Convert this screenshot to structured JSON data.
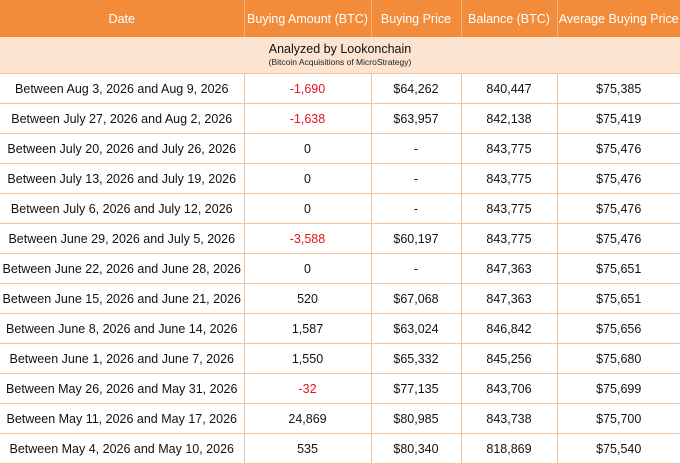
{
  "colors": {
    "header_bg": "#f28c3a",
    "banner_bg": "#fce4d0",
    "grid": "#f3c29a",
    "negative": "#e8141c"
  },
  "header": {
    "date": "Date",
    "amount": "Buying Amount (BTC)",
    "price": "Buying Price",
    "balance": "Balance (BTC)",
    "avg": "Average Buying Price"
  },
  "banner": {
    "title": "Analyzed by Lookonchain",
    "subtitle": "(Bitcoin Acquisitions of MicroStrategy)"
  },
  "rows": [
    {
      "date": "Between Aug 3, 2026 and Aug 9, 2026",
      "amount": "-1,690",
      "price": "$64,262",
      "balance": "840,447",
      "avg": "$75,385",
      "negative": true
    },
    {
      "date": "Between July 27, 2026 and Aug 2, 2026",
      "amount": "-1,638",
      "price": "$63,957",
      "balance": "842,138",
      "avg": "$75,419",
      "negative": true
    },
    {
      "date": "Between July 20, 2026 and July 26, 2026",
      "amount": "0",
      "price": "-",
      "balance": "843,775",
      "avg": "$75,476",
      "negative": false
    },
    {
      "date": "Between July 13, 2026 and July 19, 2026",
      "amount": "0",
      "price": "-",
      "balance": "843,775",
      "avg": "$75,476",
      "negative": false
    },
    {
      "date": "Between July 6, 2026 and July 12, 2026",
      "amount": "0",
      "price": "-",
      "balance": "843,775",
      "avg": "$75,476",
      "negative": false
    },
    {
      "date": "Between June 29, 2026 and July 5, 2026",
      "amount": "-3,588",
      "price": "$60,197",
      "balance": "843,775",
      "avg": "$75,476",
      "negative": true
    },
    {
      "date": "Between June 22, 2026 and June 28, 2026",
      "amount": "0",
      "price": "-",
      "balance": "847,363",
      "avg": "$75,651",
      "negative": false
    },
    {
      "date": "Between June 15, 2026 and June 21, 2026",
      "amount": "520",
      "price": "$67,068",
      "balance": "847,363",
      "avg": "$75,651",
      "negative": false
    },
    {
      "date": "Between June 8, 2026 and June 14, 2026",
      "amount": "1,587",
      "price": "$63,024",
      "balance": "846,842",
      "avg": "$75,656",
      "negative": false
    },
    {
      "date": "Between June 1, 2026 and June 7, 2026",
      "amount": "1,550",
      "price": "$65,332",
      "balance": "845,256",
      "avg": "$75,680",
      "negative": false
    },
    {
      "date": "Between May 26, 2026 and May 31, 2026",
      "amount": "-32",
      "price": "$77,135",
      "balance": "843,706",
      "avg": "$75,699",
      "negative": true
    },
    {
      "date": "Between May 11, 2026 and May 17, 2026",
      "amount": "24,869",
      "price": "$80,985",
      "balance": "843,738",
      "avg": "$75,700",
      "negative": false
    },
    {
      "date": "Between May 4, 2026 and May 10, 2026",
      "amount": "535",
      "price": "$80,340",
      "balance": "818,869",
      "avg": "$75,540",
      "negative": false
    }
  ]
}
